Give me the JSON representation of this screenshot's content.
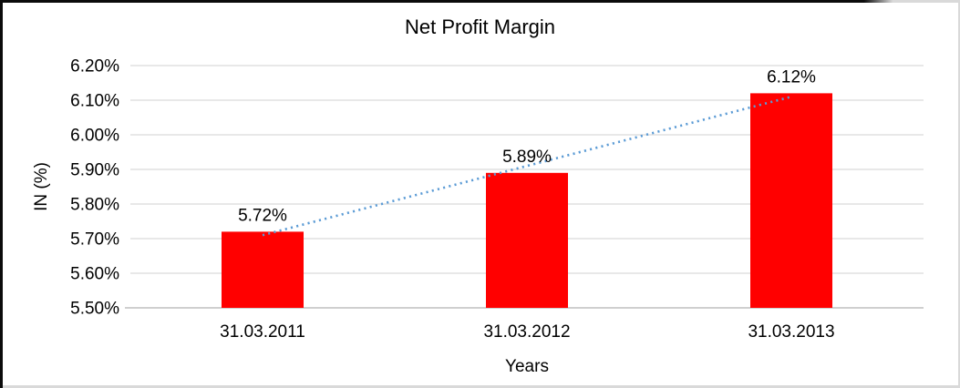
{
  "chart_data": {
    "type": "bar",
    "title": "Net Profit Margin",
    "xlabel": "Years",
    "ylabel": "IN (%)",
    "categories": [
      "31.03.2011",
      "31.03.2012",
      "31.03.2013"
    ],
    "values": [
      5.72,
      5.89,
      6.12
    ],
    "data_labels": [
      "5.72%",
      "5.89%",
      "6.12%"
    ],
    "ylim": [
      5.5,
      6.2
    ],
    "ytick_step": 0.1,
    "ytick_labels": [
      "5.50%",
      "5.60%",
      "5.70%",
      "5.80%",
      "5.90%",
      "6.00%",
      "6.10%",
      "6.20%"
    ],
    "grid": true,
    "legend_position": "none",
    "bar_color": "#FF0000",
    "gridline_color": "#D9D9D9",
    "axis_line_color": "#BFBFBF",
    "text_color": "#000000",
    "trendline": {
      "type": "linear",
      "style": "dotted",
      "color": "#5B9BD5",
      "start_value": 5.71,
      "end_value": 6.11
    }
  }
}
